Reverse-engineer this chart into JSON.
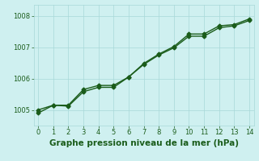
{
  "line1_x": [
    0,
    1,
    2,
    3,
    4,
    5,
    6,
    7,
    8,
    9,
    10,
    11,
    12,
    13,
    14
  ],
  "line1_y": [
    1005.0,
    1005.15,
    1005.15,
    1005.65,
    1005.78,
    1005.78,
    1006.05,
    1006.45,
    1006.75,
    1006.98,
    1007.35,
    1007.35,
    1007.62,
    1007.68,
    1007.85
  ],
  "line2_x": [
    0,
    1,
    2,
    3,
    4,
    5,
    6,
    7,
    8,
    9,
    10,
    11,
    12,
    13,
    14
  ],
  "line2_y": [
    1004.9,
    1005.15,
    1005.12,
    1005.58,
    1005.72,
    1005.72,
    1006.05,
    1006.48,
    1006.78,
    1007.02,
    1007.42,
    1007.42,
    1007.68,
    1007.72,
    1007.9
  ],
  "line_color": "#1a5c1a",
  "marker": "D",
  "marker_size": 2.5,
  "background_color": "#cff0f0",
  "grid_color": "#a8d8d8",
  "xlabel": "Graphe pression niveau de la mer (hPa)",
  "xlabel_fontsize": 7.5,
  "ylim": [
    1004.5,
    1008.35
  ],
  "xlim": [
    -0.3,
    14.3
  ],
  "yticks": [
    1005,
    1006,
    1007,
    1008
  ],
  "xticks": [
    0,
    1,
    2,
    3,
    4,
    5,
    6,
    7,
    8,
    9,
    10,
    11,
    12,
    13,
    14
  ],
  "tick_fontsize": 6.0,
  "line_width": 1.0
}
